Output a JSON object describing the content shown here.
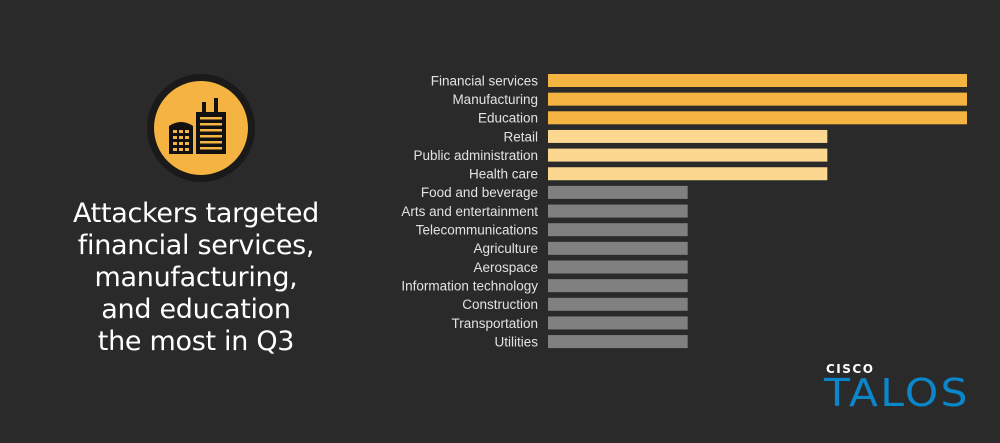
{
  "headline": {
    "lines": [
      "Attackers targeted",
      "financial services,",
      "manufacturing,",
      "and education",
      "the most in Q3"
    ]
  },
  "icon": {
    "name": "factory-buildings-icon",
    "circle_color": "#f5b341",
    "ring_color": "#1a1a1a"
  },
  "logo": {
    "brand_small": "CISCO",
    "brand_large": "TALOS",
    "color": "#0a86c9"
  },
  "chart_data": {
    "type": "bar",
    "orientation": "horizontal",
    "categories": [
      "Financial services",
      "Manufacturing",
      "Education",
      "Retail",
      "Public administration",
      "Health care",
      "Food and beverage",
      "Arts and entertainment",
      "Telecommunications",
      "Agriculture",
      "Aerospace",
      "Information technology",
      "Construction",
      "Transportation",
      "Utilities"
    ],
    "values": [
      3,
      3,
      3,
      2,
      2,
      2,
      1,
      1,
      1,
      1,
      1,
      1,
      1,
      1,
      1
    ],
    "colors": [
      "#f5b341",
      "#f5b341",
      "#f5b341",
      "#fbd790",
      "#fbd790",
      "#fbd790",
      "#808080",
      "#808080",
      "#808080",
      "#808080",
      "#808080",
      "#808080",
      "#808080",
      "#808080",
      "#808080"
    ],
    "xlim": [
      0,
      3
    ],
    "grid": false,
    "legend": "none"
  }
}
